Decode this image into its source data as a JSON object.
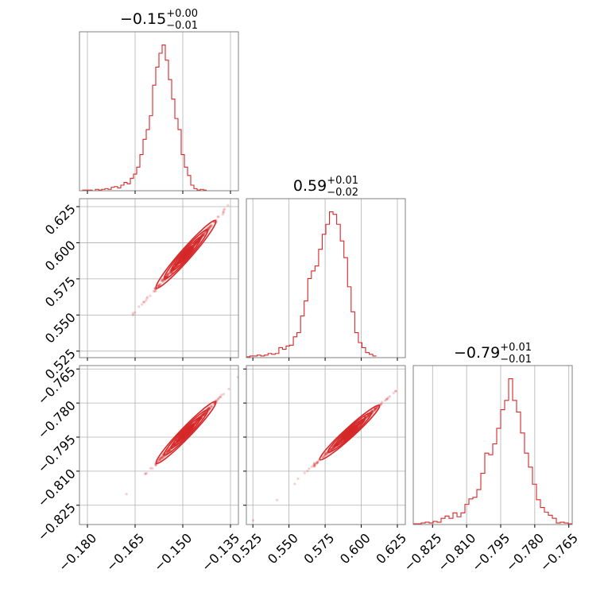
{
  "chart_data": {
    "type": "corner",
    "color": "#d62728",
    "grid": true,
    "parameters": [
      {
        "title": {
          "main": "−0.15",
          "sup": "+0.00",
          "sub": "−0.01"
        },
        "range": [
          -0.1825,
          -0.1325
        ],
        "ticks": [
          -0.18,
          -0.165,
          -0.15,
          -0.135
        ],
        "tick_labels": [
          "−0.180",
          "−0.165",
          "−0.150",
          "−0.135"
        ],
        "hist": {
          "edges_start": -0.1825,
          "edge_step": 0.001,
          "values": [
            0,
            1,
            1,
            1,
            0,
            2,
            1,
            2,
            3,
            2,
            5,
            6,
            4,
            8,
            12,
            10,
            18,
            24,
            34,
            52,
            74,
            88,
            108,
            152,
            178,
            198,
            210,
            188,
            160,
            132,
            104,
            88,
            52,
            34,
            22,
            8,
            3,
            1,
            2,
            1
          ]
        }
      },
      {
        "title": {
          "main": "0.59",
          "sup": "+0.01",
          "sub": "−0.02"
        },
        "range": [
          0.5205,
          0.6305
        ],
        "ticks": [
          0.525,
          0.55,
          0.575,
          0.6,
          0.625
        ],
        "tick_labels": [
          "0.525",
          "0.550",
          "0.575",
          "0.600",
          "0.625"
        ],
        "hist": {
          "edges_start": 0.5205,
          "edge_step": 0.0025,
          "values": [
            1,
            2,
            2,
            3,
            2,
            3,
            5,
            4,
            5,
            12,
            10,
            14,
            15,
            25,
            30,
            50,
            68,
            95,
            104,
            110,
            130,
            148,
            160,
            175,
            172,
            160,
            140,
            120,
            85,
            55,
            30,
            18,
            12,
            6,
            4,
            2
          ]
        }
      },
      {
        "title": {
          "main": "−0.79",
          "sup": "+0.01",
          "sub": "−0.01"
        },
        "range": [
          -0.8335,
          -0.7635
        ],
        "ticks": [
          -0.825,
          -0.81,
          -0.795,
          -0.78,
          -0.765
        ],
        "tick_labels": [
          "−0.825",
          "−0.810",
          "−0.795",
          "−0.780",
          "−0.765"
        ],
        "hist": {
          "edges_start": -0.8335,
          "edge_step": 0.00175,
          "values": [
            1,
            1,
            2,
            3,
            2,
            4,
            3,
            8,
            11,
            8,
            15,
            10,
            15,
            26,
            33,
            35,
            45,
            66,
            92,
            90,
            104,
            124,
            148,
            160,
            188,
            160,
            145,
            118,
            92,
            74,
            52,
            32,
            22,
            16,
            12,
            8,
            2,
            3,
            2,
            1
          ]
        }
      }
    ],
    "joint": [
      {
        "x": 0,
        "y": 1,
        "slope": 2.5,
        "x0": -0.149,
        "y0": 0.592
      },
      {
        "x": 0,
        "y": 2,
        "slope": 1.45,
        "x0": -0.149,
        "y0": -0.793
      },
      {
        "x": 1,
        "y": 2,
        "slope": 0.58,
        "x0": 0.592,
        "y0": -0.793
      }
    ]
  }
}
